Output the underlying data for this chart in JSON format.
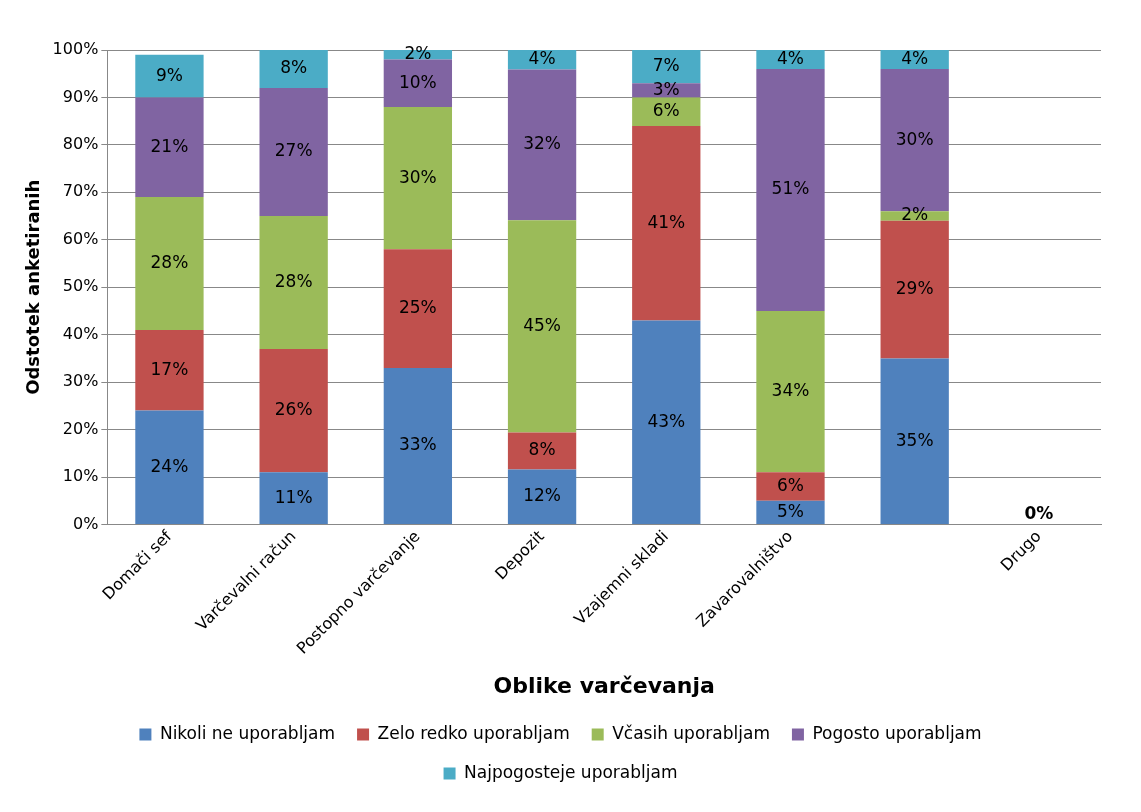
{
  "chart_data": {
    "type": "bar",
    "stacked": true,
    "xlabel": "Oblike varčevanja",
    "ylabel": "Odstotek anketiranih",
    "categories": [
      "Domači sef",
      "Varčevalni račun",
      "Postopno varčevanje",
      "Depozit",
      "Vzajemni skladi",
      "Zavarovalništvo",
      null,
      "Drugo"
    ],
    "series": [
      {
        "name": "Nikoli ne uporabljam",
        "color": "#4f81bd",
        "values": [
          24,
          11,
          33,
          11.6,
          43,
          5,
          35,
          0
        ],
        "value_labels": [
          "24%",
          "11%",
          "33%",
          "12%",
          "43%",
          "5%",
          "35%",
          "0%"
        ]
      },
      {
        "name": "Zelo redko uporabljam",
        "color": "#c0504d",
        "values": [
          17,
          26,
          25,
          7.8,
          41,
          6,
          29,
          0
        ],
        "value_labels": [
          "17%",
          "26%",
          "25%",
          "8%",
          "41%",
          "6%",
          "29%",
          null
        ]
      },
      {
        "name": "Včasih uporabljam",
        "color": "#9bbb59",
        "values": [
          28,
          28,
          30,
          44.7,
          6,
          34,
          2,
          0
        ],
        "value_labels": [
          "28%",
          "28%",
          "30%",
          "45%",
          "6%",
          "34%",
          "2%",
          null
        ]
      },
      {
        "name": "Pogosto uporabljam",
        "color": "#8064a2",
        "values": [
          21,
          27,
          10,
          31.8,
          3,
          51,
          30,
          0
        ],
        "value_labels": [
          "21%",
          "27%",
          "10%",
          "32%",
          "3%",
          "51%",
          "30%",
          null
        ]
      },
      {
        "name": "Najpogosteje uporabljam",
        "color": "#4bacc6",
        "values": [
          9,
          8,
          2,
          4.1,
          7,
          4,
          4,
          0
        ],
        "value_labels": [
          "9%",
          "8%",
          "2%",
          "4%",
          "7%",
          "4%",
          "4%",
          null
        ]
      }
    ],
    "ylim": [
      0,
      100
    ],
    "yticks": [
      {
        "value": 0,
        "label": "0%"
      },
      {
        "value": 10,
        "label": "10%"
      },
      {
        "value": 20,
        "label": "20%"
      },
      {
        "value": 30,
        "label": "30%"
      },
      {
        "value": 40,
        "label": "40%"
      },
      {
        "value": 50,
        "label": "50%"
      },
      {
        "value": 60,
        "label": "60%"
      },
      {
        "value": 70,
        "label": "70%"
      },
      {
        "value": 80,
        "label": "80%"
      },
      {
        "value": 90,
        "label": "90%"
      },
      {
        "value": 100,
        "label": "100%"
      }
    ],
    "grid": "y",
    "legend": "bottom"
  }
}
